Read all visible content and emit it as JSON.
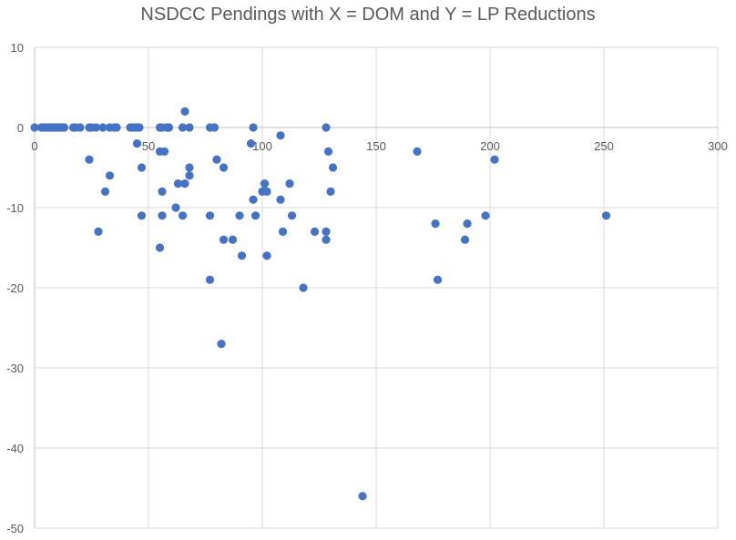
{
  "chart_data": {
    "type": "scatter",
    "title": "NSDCC Pendings with X = DOM and Y = LP Reductions",
    "xlabel": "",
    "ylabel": "",
    "xlim": [
      0,
      300
    ],
    "ylim": [
      -50,
      10
    ],
    "x_ticks": [
      0,
      50,
      100,
      150,
      200,
      250,
      300
    ],
    "y_ticks": [
      10,
      0,
      -10,
      -20,
      -30,
      -40,
      -50
    ],
    "grid": true,
    "colors": {
      "point": "#4472C4",
      "grid": "#d9d9d9",
      "axis": "#bfbfbf",
      "text": "#595959"
    },
    "points": [
      {
        "x": 0,
        "y": 0
      },
      {
        "x": 3,
        "y": 0
      },
      {
        "x": 4,
        "y": 0
      },
      {
        "x": 5,
        "y": 0
      },
      {
        "x": 6,
        "y": 0
      },
      {
        "x": 7,
        "y": 0
      },
      {
        "x": 8,
        "y": 0
      },
      {
        "x": 9,
        "y": 0
      },
      {
        "x": 10,
        "y": 0
      },
      {
        "x": 11,
        "y": 0
      },
      {
        "x": 12,
        "y": 0
      },
      {
        "x": 13,
        "y": 0
      },
      {
        "x": 17,
        "y": 0
      },
      {
        "x": 18,
        "y": 0
      },
      {
        "x": 20,
        "y": 0
      },
      {
        "x": 24,
        "y": 0
      },
      {
        "x": 25,
        "y": 0
      },
      {
        "x": 27,
        "y": 0
      },
      {
        "x": 30,
        "y": 0
      },
      {
        "x": 33,
        "y": 0
      },
      {
        "x": 35,
        "y": 0
      },
      {
        "x": 36,
        "y": 0
      },
      {
        "x": 42,
        "y": 0
      },
      {
        "x": 43,
        "y": 0
      },
      {
        "x": 44,
        "y": 0
      },
      {
        "x": 45,
        "y": 0
      },
      {
        "x": 46,
        "y": 0
      },
      {
        "x": 55,
        "y": 0
      },
      {
        "x": 56,
        "y": 0
      },
      {
        "x": 58,
        "y": 0
      },
      {
        "x": 59,
        "y": 0
      },
      {
        "x": 65,
        "y": 0
      },
      {
        "x": 68,
        "y": 0
      },
      {
        "x": 77,
        "y": 0
      },
      {
        "x": 79,
        "y": 0
      },
      {
        "x": 96,
        "y": 0
      },
      {
        "x": 128,
        "y": 0
      },
      {
        "x": 66,
        "y": 2
      },
      {
        "x": 24,
        "y": -4
      },
      {
        "x": 28,
        "y": -13
      },
      {
        "x": 31,
        "y": -8
      },
      {
        "x": 33,
        "y": -6
      },
      {
        "x": 45,
        "y": -2
      },
      {
        "x": 47,
        "y": -5
      },
      {
        "x": 47,
        "y": -11
      },
      {
        "x": 55,
        "y": -3
      },
      {
        "x": 55,
        "y": -15
      },
      {
        "x": 56,
        "y": -8
      },
      {
        "x": 56,
        "y": -11
      },
      {
        "x": 57,
        "y": -3
      },
      {
        "x": 62,
        "y": -10
      },
      {
        "x": 63,
        "y": -7
      },
      {
        "x": 65,
        "y": -11
      },
      {
        "x": 66,
        "y": -7
      },
      {
        "x": 68,
        "y": -5
      },
      {
        "x": 68,
        "y": -6
      },
      {
        "x": 77,
        "y": -11
      },
      {
        "x": 77,
        "y": -19
      },
      {
        "x": 80,
        "y": -4
      },
      {
        "x": 82,
        "y": -27
      },
      {
        "x": 83,
        "y": -5
      },
      {
        "x": 83,
        "y": -14
      },
      {
        "x": 87,
        "y": -14
      },
      {
        "x": 90,
        "y": -11
      },
      {
        "x": 91,
        "y": -16
      },
      {
        "x": 95,
        "y": -2
      },
      {
        "x": 96,
        "y": -9
      },
      {
        "x": 97,
        "y": -11
      },
      {
        "x": 100,
        "y": -8
      },
      {
        "x": 101,
        "y": -7
      },
      {
        "x": 102,
        "y": -8
      },
      {
        "x": 102,
        "y": -16
      },
      {
        "x": 108,
        "y": -1
      },
      {
        "x": 108,
        "y": -9
      },
      {
        "x": 109,
        "y": -13
      },
      {
        "x": 112,
        "y": -7
      },
      {
        "x": 113,
        "y": -11
      },
      {
        "x": 118,
        "y": -20
      },
      {
        "x": 123,
        "y": -13
      },
      {
        "x": 128,
        "y": -13
      },
      {
        "x": 128,
        "y": -14
      },
      {
        "x": 129,
        "y": -3
      },
      {
        "x": 130,
        "y": -8
      },
      {
        "x": 131,
        "y": -5
      },
      {
        "x": 144,
        "y": -46
      },
      {
        "x": 168,
        "y": -3
      },
      {
        "x": 176,
        "y": -12
      },
      {
        "x": 177,
        "y": -19
      },
      {
        "x": 189,
        "y": -14
      },
      {
        "x": 190,
        "y": -12
      },
      {
        "x": 198,
        "y": -11
      },
      {
        "x": 202,
        "y": -4
      },
      {
        "x": 251,
        "y": -11
      }
    ]
  }
}
